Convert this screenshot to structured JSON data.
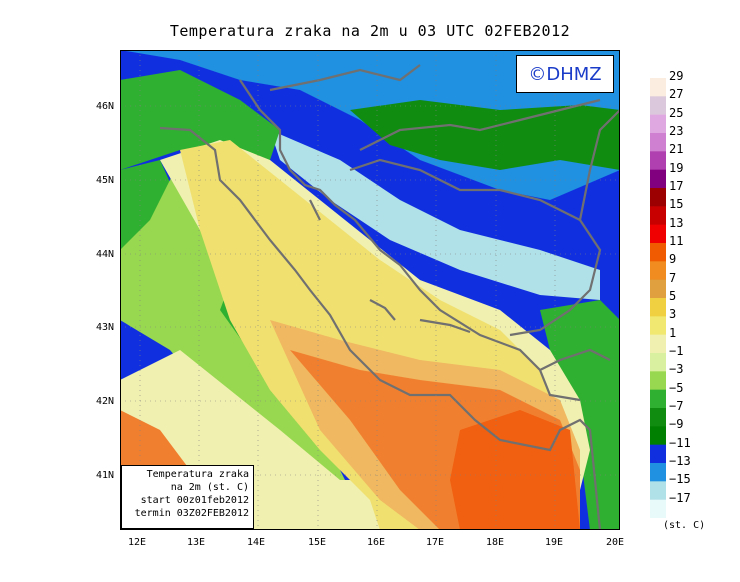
{
  "title": "Temperatura zraka na 2m u 03 UTC 02FEB2012",
  "logo": "©DHMZ",
  "infobox": {
    "line1": "Temperatura zraka",
    "line2": "na 2m (st. C)",
    "line3": "start 00z01feb2012",
    "line4": "termin 03Z02FEB2012"
  },
  "lat_ticks": [
    "46N",
    "45N",
    "44N",
    "43N",
    "42N",
    "41N"
  ],
  "lon_ticks": [
    "12E",
    "13E",
    "14E",
    "15E",
    "16E",
    "17E",
    "18E",
    "19E",
    "20E"
  ],
  "legend": {
    "unit": "(st. C)",
    "labels": [
      "29",
      "27",
      "25",
      "23",
      "21",
      "19",
      "17",
      "15",
      "13",
      "11",
      "9",
      "7",
      "5",
      "3",
      "1",
      "−1",
      "−3",
      "−5",
      "−7",
      "−9",
      "−11",
      "−13",
      "−15",
      "−17"
    ],
    "colors": [
      "#fbeee0",
      "#dcc8dc",
      "#e0a8e0",
      "#d080d0",
      "#b040b0",
      "#800080",
      "#9c0000",
      "#c80000",
      "#f00000",
      "#f05a00",
      "#f08c20",
      "#e0a040",
      "#f0d040",
      "#f0e870",
      "#f0f0b0",
      "#d8f0a0",
      "#98d850",
      "#30b030",
      "#108c10",
      "#008000",
      "#1030e0",
      "#2090e0",
      "#b0e0e8",
      "#e8fafa"
    ]
  },
  "map_colors": {
    "sea_orange": "#f08030",
    "sea_darkorange": "#f06010",
    "sea_tan": "#f0b860",
    "sea_yellow": "#f0e070",
    "light_yellow": "#f0f0b0",
    "pale_green": "#d8f0a0",
    "green_light": "#98d850",
    "green": "#30b030",
    "green_dark": "#108c10",
    "blue": "#1030e0",
    "cyan": "#2090e0",
    "ice": "#b0e0e8"
  }
}
